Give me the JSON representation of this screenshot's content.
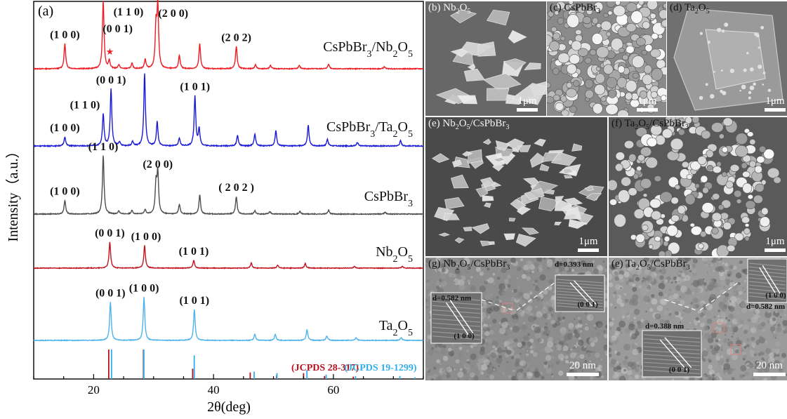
{
  "figure": {
    "xrd_panel_label": "(a)",
    "panels": [
      {
        "id": "b",
        "label_html": "(b) Nb<sub>2</sub>O<sub>5</sub>",
        "scale": "1μm"
      },
      {
        "id": "c",
        "label_html": "(c) CsPbBr<sub>3</sub>",
        "scale": "1μm"
      },
      {
        "id": "d",
        "label_html": "(d) Ta<sub>2</sub>O<sub>5</sub>",
        "scale": "1μm"
      },
      {
        "id": "e",
        "label_html": "(e) Nb<sub>2</sub>O<sub>5</sub>/CsPbBr<sub>3</sub>",
        "scale": "1μm"
      },
      {
        "id": "f",
        "label_html": "(f) Ta<sub>2</sub>O<sub>5</sub>/CsPbBr<sub>3</sub>",
        "scale": "1μm"
      },
      {
        "id": "g",
        "label_html": "(g) Nb<sub>2</sub>O<sub>5</sub>/CsPbBr<sub>3</sub>",
        "scale": "20 nm",
        "d_spacings": [
          "d=0.582 nm",
          "d=0.393 nm"
        ],
        "planes": [
          "(1 0 0)",
          "(0 0 1)"
        ]
      },
      {
        "id": "e2",
        "label_html": "(e) Ta<sub>2</sub>O<sub>5</sub>/CsPbBr<sub>3</sub>",
        "scale": "20 nm",
        "d_spacings": [
          "d=0.388 nm",
          "d=0.582 nm"
        ],
        "planes": [
          "(0 0 1)",
          "(1 0 0)"
        ]
      }
    ]
  },
  "chart_data": {
    "type": "line",
    "xlabel": "2θ(deg)",
    "ylabel": "Intensity（a.u.）",
    "xlim": [
      10,
      75
    ],
    "xticks": [
      20,
      40,
      60
    ],
    "series": [
      {
        "name": "CsPbBr3/Nb2O5",
        "name_html": "CsPbBr<tspan baseline-shift=\"sub\" font-size=\"14\">3</tspan>/Nb<tspan baseline-shift=\"sub\" font-size=\"14\">2</tspan>O<tspan baseline-shift=\"sub\" font-size=\"14\">5</tspan>",
        "color": "#ee1c24",
        "peaks": [
          [
            15.2,
            0.37
          ],
          [
            21.6,
            1.0
          ],
          [
            22.6,
            0.12
          ],
          [
            24.2,
            0.06
          ],
          [
            26.4,
            0.08
          ],
          [
            28.6,
            0.14
          ],
          [
            30.4,
            0.6
          ],
          [
            30.7,
            0.9
          ],
          [
            34.3,
            0.2
          ],
          [
            37.7,
            0.37
          ],
          [
            43.8,
            0.33
          ],
          [
            47.0,
            0.06
          ],
          [
            49.5,
            0.05
          ],
          [
            54.3,
            0.05
          ],
          [
            59.2,
            0.07
          ],
          [
            68.5,
            0.03
          ]
        ],
        "annotations": [
          [
            "(1 0 0)",
            15.2
          ],
          [
            "(1 1 0)",
            21.6
          ],
          [
            "(0 0 1)",
            22.6
          ],
          [
            "(2 0 0)",
            30.7
          ],
          [
            "(2 0 2)",
            43.8
          ]
        ],
        "star_label": "★"
      },
      {
        "name": "CsPbBr3/Ta2O5",
        "name_html": "CsPbBr<tspan baseline-shift=\"sub\" font-size=\"14\">3</tspan>/Ta<tspan baseline-shift=\"sub\" font-size=\"14\">2</tspan>O<tspan baseline-shift=\"sub\" font-size=\"14\">5</tspan>",
        "color": "#1b1bd6",
        "peaks": [
          [
            15.2,
            0.12
          ],
          [
            21.6,
            0.42
          ],
          [
            22.9,
            0.75
          ],
          [
            24.3,
            0.05
          ],
          [
            26.5,
            0.06
          ],
          [
            28.5,
            0.95
          ],
          [
            30.6,
            0.32
          ],
          [
            34.3,
            0.1
          ],
          [
            36.9,
            0.66
          ],
          [
            37.6,
            0.22
          ],
          [
            44.0,
            0.14
          ],
          [
            46.9,
            0.16
          ],
          [
            50.4,
            0.2
          ],
          [
            55.8,
            0.27
          ],
          [
            59.0,
            0.09
          ],
          [
            64.0,
            0.05
          ],
          [
            71.2,
            0.07
          ]
        ],
        "annotations": [
          [
            "(1 0 0)",
            15.2
          ],
          [
            "(1 1 0)",
            21.6
          ],
          [
            "(0 0 1)",
            22.9
          ],
          [
            "(1 0 1)",
            36.9
          ]
        ]
      },
      {
        "name": "CsPbBr3",
        "name_html": "CsPbBr<tspan baseline-shift=\"sub\" font-size=\"14\">3</tspan>",
        "color": "#4d4d4d",
        "peaks": [
          [
            15.2,
            0.21
          ],
          [
            21.6,
            0.9
          ],
          [
            24.2,
            0.05
          ],
          [
            26.4,
            0.06
          ],
          [
            28.6,
            0.07
          ],
          [
            30.4,
            0.45
          ],
          [
            30.7,
            0.63
          ],
          [
            34.3,
            0.15
          ],
          [
            37.7,
            0.3
          ],
          [
            43.8,
            0.27
          ],
          [
            46.9,
            0.05
          ],
          [
            49.4,
            0.04
          ],
          [
            54.4,
            0.04
          ],
          [
            59.2,
            0.06
          ],
          [
            68.6,
            0.03
          ]
        ],
        "annotations": [
          [
            "(1 0 0)",
            15.2
          ],
          [
            "(1 1 0)",
            21.6
          ],
          [
            "(2 0 0)",
            30.7
          ],
          [
            "( 2 0 2 )",
            43.8
          ]
        ]
      },
      {
        "name": "Nb2O5",
        "name_html": "Nb<tspan baseline-shift=\"sub\" font-size=\"14\">2</tspan>O<tspan baseline-shift=\"sub\" font-size=\"14\">5</tspan>",
        "color": "#c0151f",
        "peaks": [
          [
            22.7,
            0.46
          ],
          [
            28.5,
            0.4
          ],
          [
            36.7,
            0.14
          ],
          [
            46.3,
            0.09
          ],
          [
            50.7,
            0.05
          ],
          [
            55.3,
            0.08
          ],
          [
            63.5,
            0.03
          ],
          [
            71.5,
            0.03
          ]
        ],
        "annotations": [
          [
            "(0 0 1)",
            22.7
          ],
          [
            "(1 0 0)",
            28.5
          ],
          [
            "(1 0 1)",
            36.7
          ]
        ]
      },
      {
        "name": "Ta2O5",
        "name_html": "Ta<tspan baseline-shift=\"sub\" font-size=\"14\">2</tspan>O<tspan baseline-shift=\"sub\" font-size=\"14\">5</tspan>",
        "color": "#4fb3ea",
        "peaks": [
          [
            22.8,
            0.68
          ],
          [
            28.4,
            0.77
          ],
          [
            36.8,
            0.55
          ],
          [
            46.9,
            0.11
          ],
          [
            50.3,
            0.11
          ],
          [
            55.6,
            0.19
          ],
          [
            58.9,
            0.08
          ],
          [
            63.8,
            0.05
          ],
          [
            71.3,
            0.05
          ]
        ],
        "annotations": [
          [
            "(0 0 1)",
            22.8
          ],
          [
            "(1 0 0)",
            28.4
          ],
          [
            "(1 0 1)",
            36.8
          ]
        ]
      }
    ],
    "references": [
      {
        "name": "(JCPDS 28-317)",
        "color": "#b3121e",
        "lines": [
          [
            22.6,
            1.0
          ],
          [
            28.4,
            1.0
          ],
          [
            36.6,
            0.35
          ],
          [
            46.2,
            0.22
          ],
          [
            50.6,
            0.12
          ],
          [
            55.1,
            0.2
          ],
          [
            58.6,
            0.1
          ],
          [
            63.4,
            0.08
          ]
        ]
      },
      {
        "name": "(JCPDS 19-1299)",
        "color": "#32aee8",
        "lines": [
          [
            22.9,
            1.0
          ],
          [
            28.3,
            1.0
          ],
          [
            36.7,
            0.8
          ],
          [
            46.7,
            0.25
          ],
          [
            50.5,
            0.2
          ],
          [
            55.5,
            0.3
          ],
          [
            58.7,
            0.15
          ],
          [
            63.6,
            0.1
          ],
          [
            71.0,
            0.1
          ],
          [
            73.5,
            0.06
          ]
        ]
      }
    ]
  }
}
